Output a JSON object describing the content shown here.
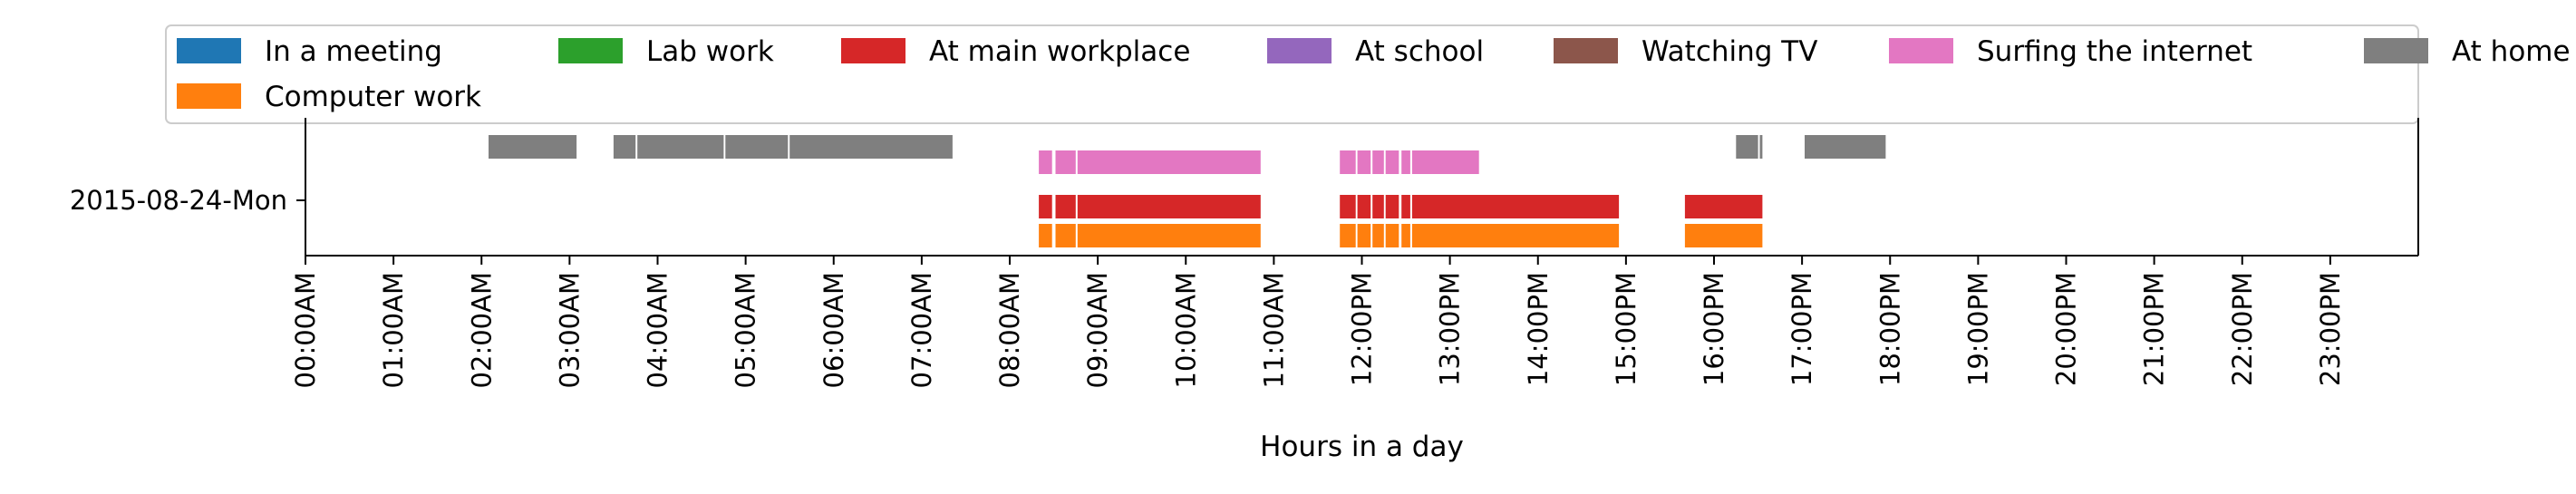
{
  "chart_data": {
    "type": "timeline",
    "title": "",
    "xlabel": "Hours in a day",
    "ylabel": "",
    "x_unit": "hours",
    "xlim": [
      0,
      24
    ],
    "x_ticks": [
      "00:00AM",
      "01:00AM",
      "02:00AM",
      "03:00AM",
      "04:00AM",
      "05:00AM",
      "06:00AM",
      "07:00AM",
      "08:00AM",
      "09:00AM",
      "10:00AM",
      "11:00AM",
      "12:00PM",
      "13:00PM",
      "14:00PM",
      "15:00PM",
      "16:00PM",
      "17:00PM",
      "18:00PM",
      "19:00PM",
      "20:00PM",
      "21:00PM",
      "22:00PM",
      "23:00PM"
    ],
    "y_categories": [
      "2015-08-24-Mon"
    ],
    "grid": false,
    "legend_position": "top",
    "legend": [
      {
        "name": "In a meeting",
        "color": "#1f77b4"
      },
      {
        "name": "Computer work",
        "color": "#ff7f0e"
      },
      {
        "name": "Lab work",
        "color": "#2ca02c"
      },
      {
        "name": "At main workplace",
        "color": "#d62728"
      },
      {
        "name": "At school",
        "color": "#9467bd"
      },
      {
        "name": "Watching TV",
        "color": "#8c564b"
      },
      {
        "name": "Surfing the internet",
        "color": "#e377c2"
      },
      {
        "name": "At home",
        "color": "#7f7f7f"
      }
    ],
    "series": [
      {
        "name": "Computer work",
        "color": "#ff7f0e",
        "intervals": [
          [
            8.33,
            8.48
          ],
          [
            8.52,
            8.75
          ],
          [
            8.77,
            10.85
          ],
          [
            11.75,
            11.93
          ],
          [
            11.95,
            12.1
          ],
          [
            12.12,
            12.25
          ],
          [
            12.27,
            12.42
          ],
          [
            12.45,
            12.55
          ],
          [
            12.57,
            14.92
          ],
          [
            15.67,
            16.55
          ]
        ]
      },
      {
        "name": "At main workplace",
        "color": "#d62728",
        "intervals": [
          [
            8.33,
            8.48
          ],
          [
            8.52,
            8.75
          ],
          [
            8.77,
            10.85
          ],
          [
            11.75,
            11.93
          ],
          [
            11.95,
            12.1
          ],
          [
            12.12,
            12.25
          ],
          [
            12.27,
            12.42
          ],
          [
            12.45,
            12.55
          ],
          [
            12.57,
            14.92
          ],
          [
            15.67,
            16.55
          ]
        ]
      },
      {
        "name": "Surfing the internet",
        "color": "#e377c2",
        "intervals": [
          [
            8.33,
            8.48
          ],
          [
            8.52,
            8.75
          ],
          [
            8.77,
            10.85
          ],
          [
            11.75,
            11.93
          ],
          [
            11.95,
            12.1
          ],
          [
            12.12,
            12.25
          ],
          [
            12.27,
            12.42
          ],
          [
            12.45,
            12.55
          ],
          [
            12.57,
            13.33
          ]
        ]
      },
      {
        "name": "At home",
        "color": "#7f7f7f",
        "intervals": [
          [
            2.08,
            3.08
          ],
          [
            3.5,
            3.75
          ],
          [
            3.77,
            4.75
          ],
          [
            4.77,
            5.48
          ],
          [
            5.5,
            7.35
          ],
          [
            16.25,
            16.5
          ],
          [
            16.52,
            16.55
          ],
          [
            17.03,
            17.95
          ]
        ]
      }
    ]
  }
}
